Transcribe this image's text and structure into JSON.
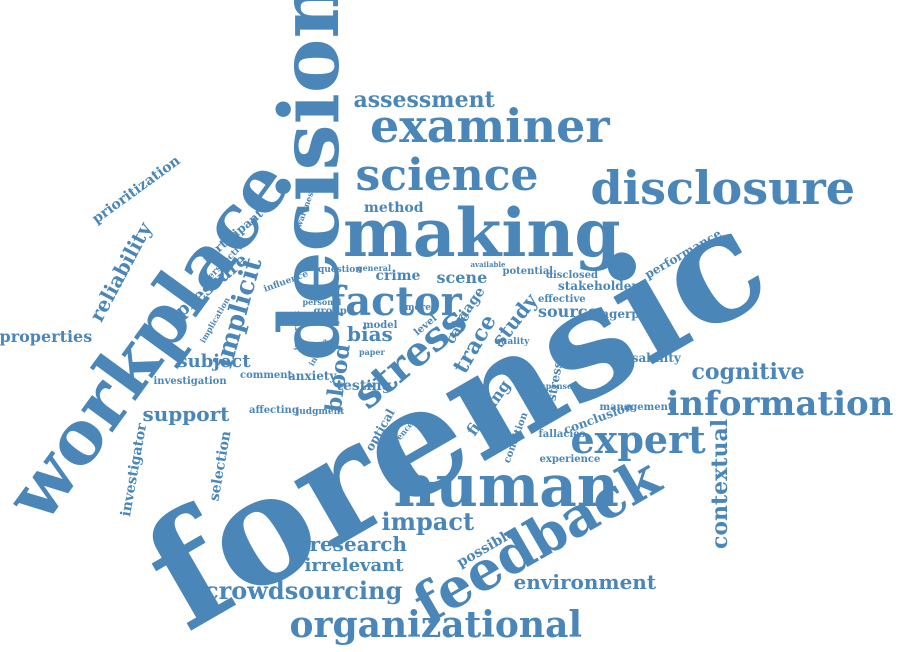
{
  "colors": {
    "word": "#4a86b8",
    "background": "#ffffff"
  },
  "words": [
    "forensic",
    "decision",
    "workplace",
    "making",
    "human",
    "feedback",
    "disclosure",
    "examiner",
    "science",
    "organizational",
    "information",
    "expert",
    "factor",
    "crowdsourcing",
    "stress",
    "contextual",
    "implicit",
    "cognitive",
    "assessment",
    "reliability",
    "impact",
    "research",
    "irrelevant",
    "environment",
    "support",
    "subject",
    "properties",
    "blood",
    "bias",
    "study",
    "source",
    "scene",
    "crime",
    "pressure",
    "method",
    "prioritization",
    "selection",
    "testing",
    "trace",
    "optical",
    "finding",
    "possible",
    "investigator",
    "performance",
    "participant",
    "stakeholder",
    "fingerprint",
    "biasability",
    "stressor",
    "conclusion",
    "management",
    "fallacies",
    "condition",
    "experience",
    "anxiety",
    "comment",
    "investigation",
    "affecting",
    "judgment",
    "influence",
    "question",
    "general",
    "potential",
    "disclosed",
    "effective",
    "available",
    "group",
    "novice",
    "model",
    "level",
    "case",
    "quality",
    "perspective",
    "awareness",
    "response",
    "difference",
    "paper",
    "implication",
    "induce",
    "triage",
    "important",
    "more",
    "personal"
  ]
}
